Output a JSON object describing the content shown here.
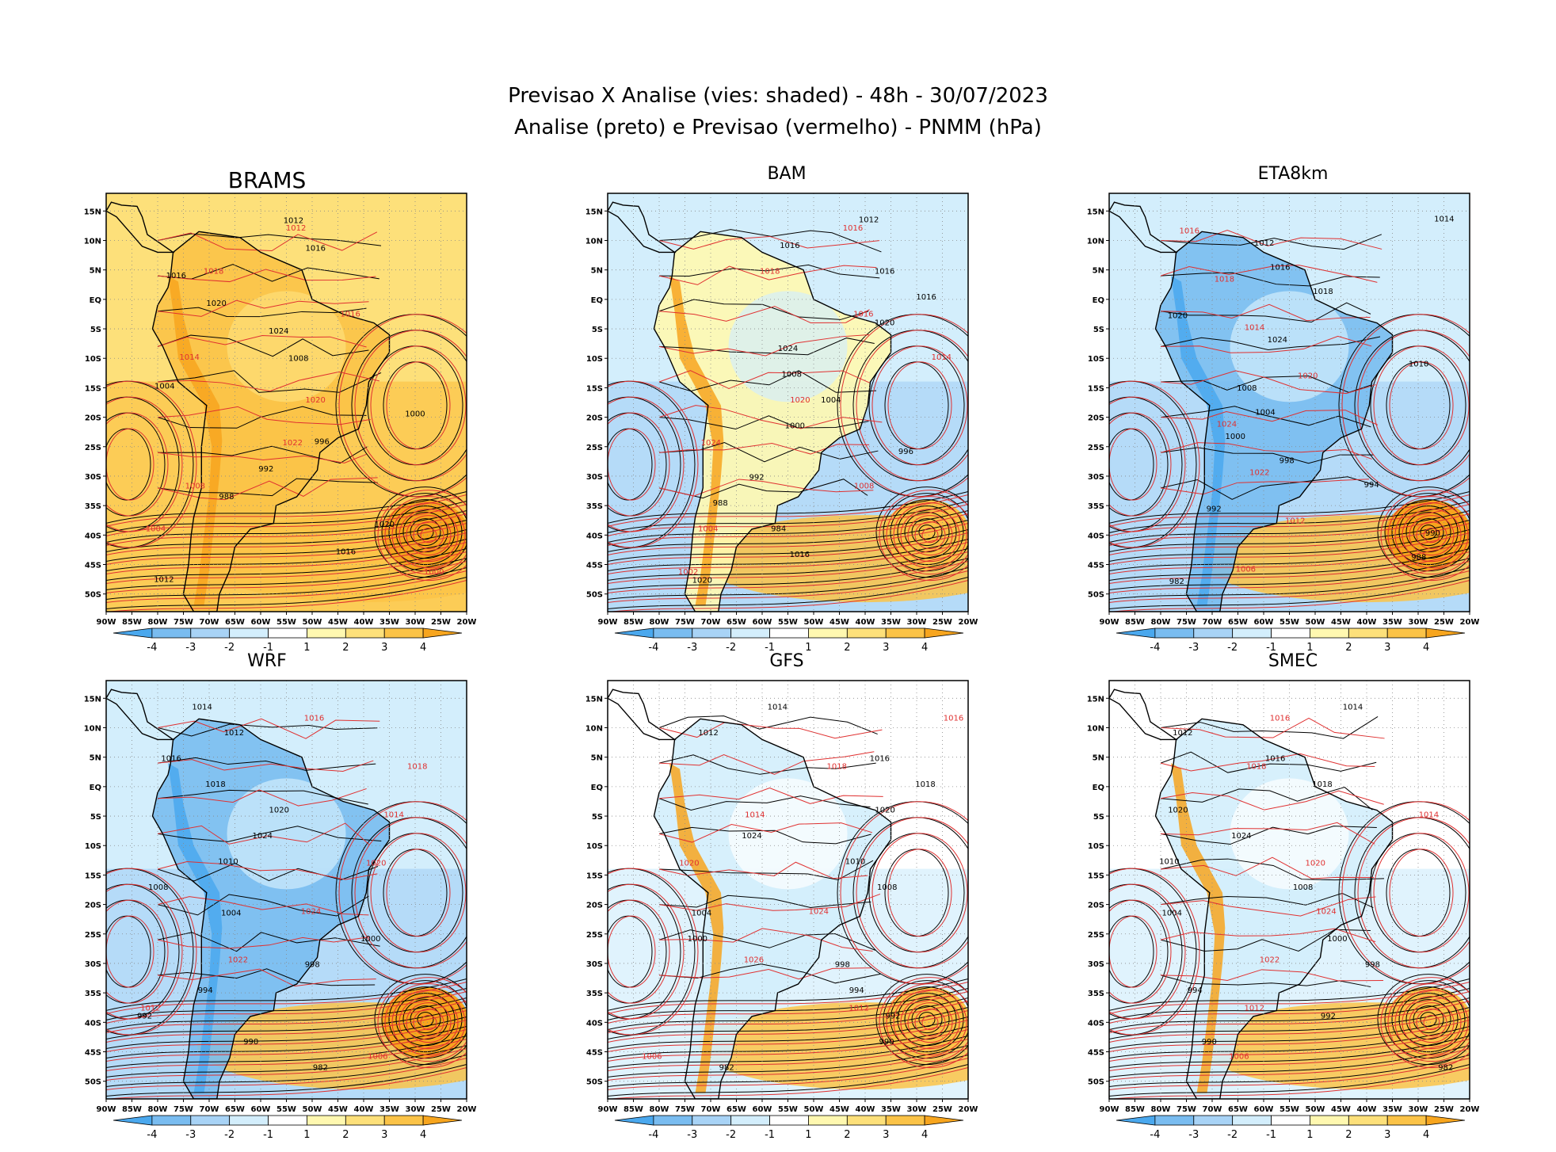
{
  "header": {
    "line1": "Previsao X Analise (vies: shaded) - 48h - 30/07/2023",
    "line2": "Analise (preto) e Previsao (vermelho) - PNMM (hPa)"
  },
  "axes": {
    "lat_labels": [
      "15N",
      "10N",
      "5N",
      "EQ",
      "5S",
      "10S",
      "15S",
      "20S",
      "25S",
      "30S",
      "35S",
      "40S",
      "45S",
      "50S"
    ],
    "lon_labels": [
      "90W",
      "85W",
      "80W",
      "75W",
      "70W",
      "65W",
      "60W",
      "55W",
      "50W",
      "45W",
      "40W",
      "35W",
      "30W",
      "25W",
      "20W"
    ]
  },
  "colorbar": {
    "labels": [
      "-4",
      "-3",
      "-2",
      "-1",
      "1",
      "2",
      "3",
      "4"
    ],
    "colors": [
      "#4aa8ee",
      "#79bcf0",
      "#a8d3f6",
      "#d3eefc",
      "#ffffff",
      "#fff8b0",
      "#fde07a",
      "#fbc347",
      "#f7a51e"
    ]
  },
  "colors": {
    "analysis_contour": "#000000",
    "forecast_contour": "#e03030",
    "coast": "#000000"
  },
  "panels": [
    {
      "id": "brams",
      "name": "BRAMS",
      "bias": "positive",
      "labels_k": [
        "1012",
        "1016",
        "1016",
        "1020",
        "1024",
        "1008",
        "1004",
        "1000",
        "996",
        "992",
        "988",
        "1020",
        "1016",
        "1012"
      ],
      "labels_r": [
        "1012",
        "1018",
        "1016",
        "1014",
        "1020",
        "1022",
        "1008",
        "1004",
        "1000"
      ]
    },
    {
      "id": "bam",
      "name": "BAM",
      "bias": "mixed",
      "labels_k": [
        "1012",
        "1016",
        "1016",
        "1016",
        "1020",
        "1024",
        "1008",
        "1004",
        "1000",
        "996",
        "992",
        "988",
        "984",
        "1016",
        "1020"
      ],
      "labels_r": [
        "1016",
        "1018",
        "1016",
        "1014",
        "1020",
        "1024",
        "1008",
        "1004",
        "1002"
      ]
    },
    {
      "id": "eta8km",
      "name": "ETA8km",
      "bias": "negative",
      "labels_k": [
        "1014",
        "1012",
        "1016",
        "1018",
        "1020",
        "1024",
        "1010",
        "1008",
        "1004",
        "1000",
        "998",
        "994",
        "992",
        "990",
        "988",
        "982"
      ],
      "labels_r": [
        "1016",
        "1018",
        "1014",
        "1020",
        "1024",
        "1022",
        "1012",
        "1006"
      ]
    },
    {
      "id": "wrf",
      "name": "WRF",
      "bias": "negative",
      "labels_k": [
        "1014",
        "1012",
        "1016",
        "1018",
        "1020",
        "1024",
        "1010",
        "1008",
        "1004",
        "1000",
        "998",
        "994",
        "992",
        "990",
        "982"
      ],
      "labels_r": [
        "1016",
        "1018",
        "1014",
        "1020",
        "1024",
        "1022",
        "1012",
        "1006"
      ]
    },
    {
      "id": "gfs",
      "name": "GFS",
      "bias": "light-negative",
      "labels_k": [
        "1014",
        "1012",
        "1016",
        "1018",
        "1020",
        "1024",
        "1010",
        "1008",
        "1004",
        "1000",
        "998",
        "994",
        "992",
        "990",
        "982"
      ],
      "labels_r": [
        "1016",
        "1018",
        "1014",
        "1020",
        "1024",
        "1026",
        "1012",
        "1006"
      ]
    },
    {
      "id": "smec",
      "name": "SMEC",
      "bias": "light-negative",
      "labels_k": [
        "1014",
        "1012",
        "1016",
        "1018",
        "1020",
        "1024",
        "1010",
        "1008",
        "1004",
        "1000",
        "998",
        "994",
        "992",
        "990",
        "982"
      ],
      "labels_r": [
        "1016",
        "1018",
        "1014",
        "1020",
        "1024",
        "1022",
        "1012",
        "1006"
      ]
    }
  ]
}
